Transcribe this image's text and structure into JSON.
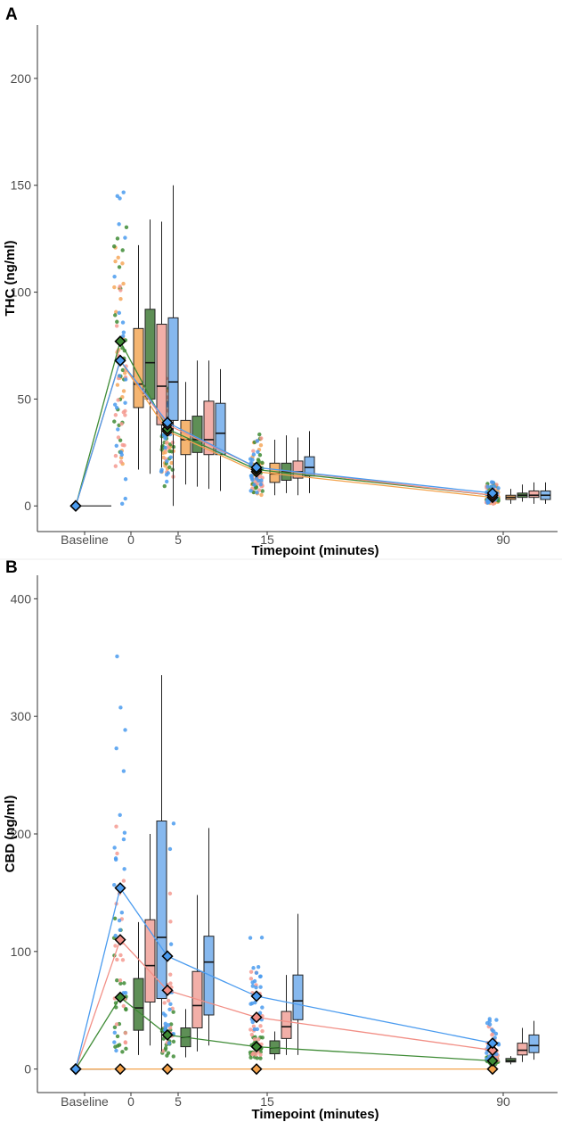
{
  "colors": {
    "orange": "#F4A24A",
    "green": "#3E8B35",
    "pink": "#F28F86",
    "blue": "#4A9BEF",
    "green_box": "#5E8F56",
    "pink_box": "#F2AFA8",
    "blue_box": "#86B8EE",
    "orange_box": "#F5B571",
    "jitter_orange": "#F6A75A",
    "jitter_green": "#3E8B35",
    "jitter_pink": "#F59A90",
    "jitter_blue": "#4A9BEF"
  },
  "chart_data": [
    {
      "panel": "A",
      "type": "box",
      "xlabel": "Timepoint (minutes)",
      "ylabel": "THC (ng/ml)",
      "ylim": [
        -12,
        225
      ],
      "yticks": [
        0,
        50,
        100,
        150,
        200
      ],
      "categories": [
        "Baseline",
        "0",
        "5",
        "15",
        "90"
      ],
      "series": [
        {
          "color_key": "orange",
          "means": [
            0,
            68,
            35,
            16,
            4
          ]
        },
        {
          "color_key": "green",
          "means": [
            0,
            77,
            36,
            17,
            5
          ]
        },
        {
          "color_key": "pink",
          "means": [
            0,
            68,
            38,
            18,
            5
          ]
        },
        {
          "color_key": "blue",
          "means": [
            0,
            68,
            39,
            18,
            6
          ]
        }
      ],
      "boxes": [
        {
          "t": "0",
          "color_key": "orange",
          "low": 17,
          "q1": 46,
          "med": 57,
          "q3": 83,
          "high": 122
        },
        {
          "t": "0",
          "color_key": "green",
          "low": 15,
          "q1": 50,
          "med": 67,
          "q3": 92,
          "high": 134
        },
        {
          "t": "0",
          "color_key": "pink",
          "low": 18,
          "q1": 38,
          "med": 56,
          "q3": 85,
          "high": 133
        },
        {
          "t": "0",
          "color_key": "blue",
          "low": 0,
          "q1": 40,
          "med": 58,
          "q3": 88,
          "high": 150
        },
        {
          "t": "5",
          "color_key": "orange",
          "low": 10,
          "q1": 24,
          "med": 31,
          "q3": 40,
          "high": 58
        },
        {
          "t": "5",
          "color_key": "green",
          "low": 9,
          "q1": 25,
          "med": 31,
          "q3": 42,
          "high": 68
        },
        {
          "t": "5",
          "color_key": "pink",
          "low": 8,
          "q1": 24,
          "med": 31,
          "q3": 49,
          "high": 68
        },
        {
          "t": "5",
          "color_key": "blue",
          "low": 7,
          "q1": 24,
          "med": 34,
          "q3": 48,
          "high": 64
        },
        {
          "t": "15",
          "color_key": "orange",
          "low": 5,
          "q1": 11,
          "med": 15,
          "q3": 20,
          "high": 31
        },
        {
          "t": "15",
          "color_key": "green",
          "low": 6,
          "q1": 12,
          "med": 16,
          "q3": 20,
          "high": 33
        },
        {
          "t": "15",
          "color_key": "pink",
          "low": 5,
          "q1": 13,
          "med": 16,
          "q3": 21,
          "high": 32
        },
        {
          "t": "15",
          "color_key": "blue",
          "low": 6,
          "q1": 14,
          "med": 18,
          "q3": 23,
          "high": 35
        },
        {
          "t": "90",
          "color_key": "orange",
          "low": 1,
          "q1": 3,
          "med": 4,
          "q3": 5,
          "high": 8
        },
        {
          "t": "90",
          "color_key": "green",
          "low": 2,
          "q1": 4,
          "med": 5,
          "q3": 6,
          "high": 10
        },
        {
          "t": "90",
          "color_key": "pink",
          "low": 1,
          "q1": 4,
          "med": 5,
          "q3": 7,
          "high": 11
        },
        {
          "t": "90",
          "color_key": "blue",
          "low": 1,
          "q1": 3,
          "med": 5,
          "q3": 7,
          "high": 11
        }
      ]
    },
    {
      "panel": "B",
      "type": "box",
      "xlabel": "Timepoint (minutes)",
      "ylabel": "CBD (ng/ml)",
      "ylim": [
        -20,
        420
      ],
      "yticks": [
        0,
        100,
        200,
        300,
        400
      ],
      "categories": [
        "Baseline",
        "0",
        "5",
        "15",
        "90"
      ],
      "series": [
        {
          "color_key": "orange",
          "means": [
            0,
            0,
            0,
            0,
            0
          ]
        },
        {
          "color_key": "green",
          "means": [
            0,
            61,
            29,
            19,
            7
          ]
        },
        {
          "color_key": "pink",
          "means": [
            0,
            110,
            67,
            44,
            16
          ]
        },
        {
          "color_key": "blue",
          "means": [
            0,
            154,
            96,
            62,
            22
          ]
        }
      ],
      "boxes": [
        {
          "t": "0",
          "color_key": "green",
          "low": 12,
          "q1": 33,
          "med": 52,
          "q3": 77,
          "high": 125
        },
        {
          "t": "0",
          "color_key": "pink",
          "low": 20,
          "q1": 57,
          "med": 88,
          "q3": 127,
          "high": 200
        },
        {
          "t": "0",
          "color_key": "blue",
          "low": 15,
          "q1": 60,
          "med": 112,
          "q3": 211,
          "high": 335
        },
        {
          "t": "5",
          "color_key": "green",
          "low": 10,
          "q1": 19,
          "med": 27,
          "q3": 35,
          "high": 51
        },
        {
          "t": "5",
          "color_key": "pink",
          "low": 15,
          "q1": 35,
          "med": 54,
          "q3": 83,
          "high": 148
        },
        {
          "t": "5",
          "color_key": "blue",
          "low": 20,
          "q1": 46,
          "med": 91,
          "q3": 113,
          "high": 205
        },
        {
          "t": "15",
          "color_key": "green",
          "low": 8,
          "q1": 13,
          "med": 18,
          "q3": 24,
          "high": 32
        },
        {
          "t": "15",
          "color_key": "pink",
          "low": 12,
          "q1": 26,
          "med": 36,
          "q3": 49,
          "high": 80
        },
        {
          "t": "15",
          "color_key": "blue",
          "low": 12,
          "q1": 42,
          "med": 58,
          "q3": 80,
          "high": 132
        },
        {
          "t": "90",
          "color_key": "green",
          "low": 4,
          "q1": 6,
          "med": 7,
          "q3": 9,
          "high": 11
        },
        {
          "t": "90",
          "color_key": "pink",
          "low": 6,
          "q1": 12,
          "med": 16,
          "q3": 22,
          "high": 35
        },
        {
          "t": "90",
          "color_key": "blue",
          "low": 8,
          "q1": 14,
          "med": 20,
          "q3": 29,
          "high": 41
        }
      ]
    }
  ]
}
